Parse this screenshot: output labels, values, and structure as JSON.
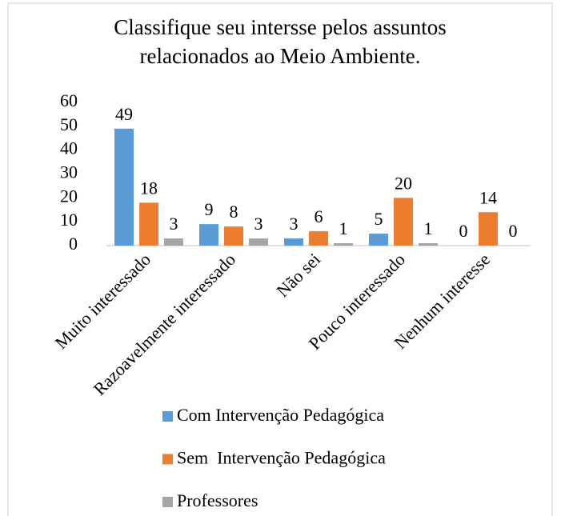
{
  "chart_data": {
    "type": "bar",
    "title": "Classifique seu intersse pelos assuntos relacionados ao Meio Ambiente.",
    "categories": [
      "Muito interessado",
      "Razoavelmente interessado",
      "Não sei",
      "Pouco interessado",
      "Nenhum interesse"
    ],
    "series": [
      {
        "name": "Com Intervenção Pedagógica",
        "color": "#5b9bd5",
        "values": [
          49,
          9,
          3,
          5,
          0
        ]
      },
      {
        "name": "Sem  Intervenção Pedagógica",
        "color": "#ed7d31",
        "values": [
          18,
          8,
          6,
          20,
          14
        ]
      },
      {
        "name": "Professores",
        "color": "#a5a5a5",
        "values": [
          3,
          3,
          1,
          1,
          0
        ]
      }
    ],
    "ylim": [
      0,
      60
    ],
    "yticks": [
      0,
      10,
      20,
      30,
      40,
      50,
      60
    ],
    "grid": false,
    "legend": "bottom"
  }
}
